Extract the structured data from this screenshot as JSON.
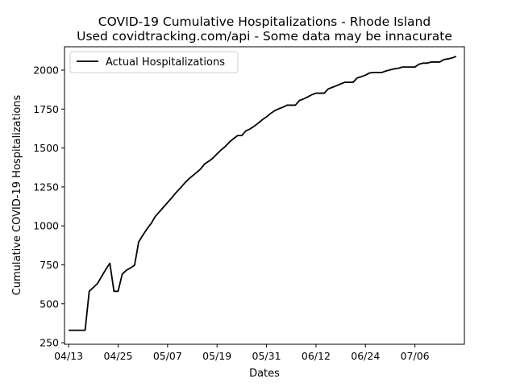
{
  "chart_data": {
    "type": "line",
    "title": "COVID-19 Cumulative Hospitalizations - Rhode Island",
    "subtitle": "Used covidtracking.com/api - Some data may be innacurate",
    "xlabel": "Dates",
    "ylabel": "Cumulative COVID-19 Hospitalizations",
    "x_tick_labels": [
      "04/13",
      "04/25",
      "05/07",
      "05/19",
      "05/31",
      "06/12",
      "06/24",
      "07/06"
    ],
    "y_tick_labels": [
      "250",
      "500",
      "750",
      "1000",
      "1250",
      "1500",
      "1750",
      "2000"
    ],
    "ylim": [
      240,
      2150
    ],
    "x_range": [
      "04/12",
      "07/18"
    ],
    "legend_position": "upper-left",
    "grid": false,
    "series": [
      {
        "name": "Actual Hospitalizations",
        "color": "#000000",
        "points": [
          [
            "04/13",
            330
          ],
          [
            "04/14",
            330
          ],
          [
            "04/15",
            330
          ],
          [
            "04/16",
            330
          ],
          [
            "04/17",
            330
          ],
          [
            "04/18",
            580
          ],
          [
            "04/19",
            605
          ],
          [
            "04/20",
            630
          ],
          [
            "04/21",
            675
          ],
          [
            "04/22",
            720
          ],
          [
            "04/23",
            760
          ],
          [
            "04/24",
            580
          ],
          [
            "04/25",
            580
          ],
          [
            "04/26",
            690
          ],
          [
            "04/27",
            715
          ],
          [
            "04/28",
            730
          ],
          [
            "04/29",
            748
          ],
          [
            "04/30",
            898
          ],
          [
            "05/01",
            940
          ],
          [
            "05/02",
            980
          ],
          [
            "05/03",
            1015
          ],
          [
            "05/04",
            1060
          ],
          [
            "05/05",
            1090
          ],
          [
            "05/06",
            1120
          ],
          [
            "05/07",
            1150
          ],
          [
            "05/08",
            1180
          ],
          [
            "05/09",
            1212
          ],
          [
            "05/10",
            1240
          ],
          [
            "05/11",
            1270
          ],
          [
            "05/12",
            1298
          ],
          [
            "05/13",
            1320
          ],
          [
            "05/14",
            1342
          ],
          [
            "05/15",
            1365
          ],
          [
            "05/16",
            1398
          ],
          [
            "05/17",
            1415
          ],
          [
            "05/18",
            1435
          ],
          [
            "05/19",
            1462
          ],
          [
            "05/20",
            1488
          ],
          [
            "05/21",
            1510
          ],
          [
            "05/22",
            1538
          ],
          [
            "05/23",
            1560
          ],
          [
            "05/24",
            1580
          ],
          [
            "05/25",
            1580
          ],
          [
            "05/26",
            1610
          ],
          [
            "05/27",
            1622
          ],
          [
            "05/28",
            1640
          ],
          [
            "05/29",
            1660
          ],
          [
            "05/30",
            1682
          ],
          [
            "05/31",
            1700
          ],
          [
            "06/01",
            1722
          ],
          [
            "06/02",
            1740
          ],
          [
            "06/03",
            1752
          ],
          [
            "06/04",
            1762
          ],
          [
            "06/05",
            1775
          ],
          [
            "06/06",
            1775
          ],
          [
            "06/07",
            1775
          ],
          [
            "06/08",
            1805
          ],
          [
            "06/09",
            1815
          ],
          [
            "06/10",
            1828
          ],
          [
            "06/11",
            1842
          ],
          [
            "06/12",
            1852
          ],
          [
            "06/13",
            1852
          ],
          [
            "06/14",
            1852
          ],
          [
            "06/15",
            1880
          ],
          [
            "06/16",
            1890
          ],
          [
            "06/17",
            1900
          ],
          [
            "06/18",
            1912
          ],
          [
            "06/19",
            1922
          ],
          [
            "06/20",
            1922
          ],
          [
            "06/21",
            1922
          ],
          [
            "06/22",
            1950
          ],
          [
            "06/23",
            1958
          ],
          [
            "06/24",
            1968
          ],
          [
            "06/25",
            1982
          ],
          [
            "06/26",
            1985
          ],
          [
            "06/27",
            1985
          ],
          [
            "06/28",
            1985
          ],
          [
            "06/29",
            1995
          ],
          [
            "06/30",
            2002
          ],
          [
            "07/01",
            2008
          ],
          [
            "07/02",
            2012
          ],
          [
            "07/03",
            2020
          ],
          [
            "07/04",
            2020
          ],
          [
            "07/05",
            2020
          ],
          [
            "07/06",
            2020
          ],
          [
            "07/07",
            2038
          ],
          [
            "07/08",
            2045
          ],
          [
            "07/09",
            2045
          ],
          [
            "07/10",
            2052
          ],
          [
            "07/11",
            2052
          ],
          [
            "07/12",
            2052
          ],
          [
            "07/13",
            2068
          ],
          [
            "07/14",
            2072
          ],
          [
            "07/15",
            2078
          ],
          [
            "07/16",
            2088
          ]
        ]
      }
    ]
  }
}
